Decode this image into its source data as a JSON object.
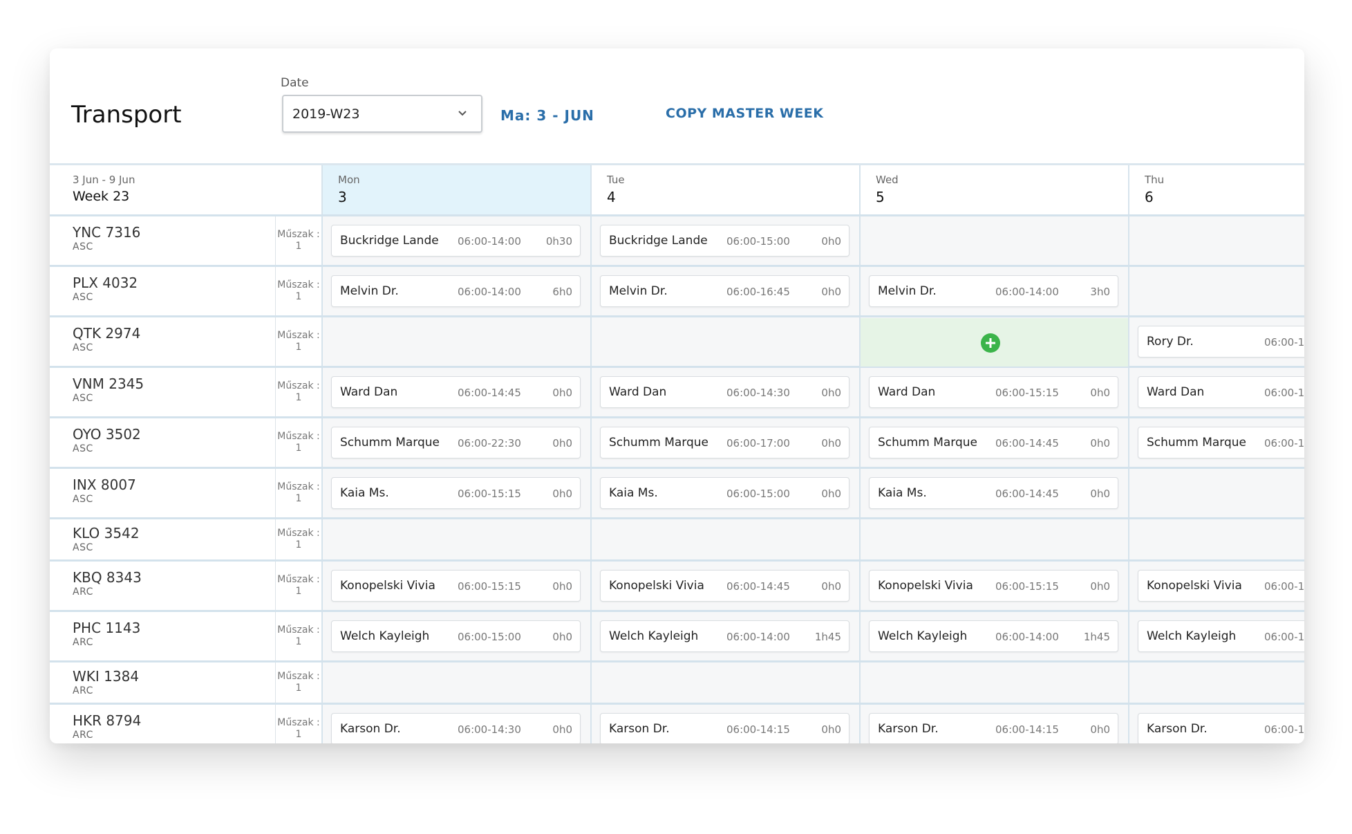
{
  "header": {
    "title": "Transport",
    "date_label": "Date",
    "date_value": "2019-W23",
    "day_link": "Ma: 3 - JUN",
    "action": "COPY MASTER WEEK"
  },
  "week": {
    "range": "3 Jun - 9 Jun",
    "label": "Week 23"
  },
  "days": [
    {
      "name": "Mon",
      "number": "3"
    },
    {
      "name": "Tue",
      "number": "4"
    },
    {
      "name": "Wed",
      "number": "5"
    },
    {
      "name": "Thu",
      "number": "6"
    }
  ],
  "rows": [
    {
      "vehicle": "YNC 7316",
      "group": "ASC",
      "shift_label": "Műszak :",
      "shift": "1",
      "cells": [
        {
          "driver": "Buckridge Lande",
          "time": "06:00-14:00",
          "extra": "0h30"
        },
        {
          "driver": "Buckridge Lande",
          "time": "06:00-15:00",
          "extra": "0h0"
        },
        null,
        null
      ]
    },
    {
      "vehicle": "PLX 4032",
      "group": "ASC",
      "shift_label": "Műszak :",
      "shift": "1",
      "cells": [
        {
          "driver": "Melvin Dr.",
          "time": "06:00-14:00",
          "extra": "6h0"
        },
        {
          "driver": "Melvin Dr.",
          "time": "06:00-16:45",
          "extra": "0h0"
        },
        {
          "driver": "Melvin Dr.",
          "time": "06:00-14:00",
          "extra": "3h0"
        },
        null
      ]
    },
    {
      "vehicle": "QTK 2974",
      "group": "ASC",
      "shift_label": "Műszak :",
      "shift": "1",
      "cells": [
        null,
        null,
        null,
        {
          "driver": "Rory Dr.",
          "time": "06:00-1"
        }
      ]
    },
    {
      "vehicle": "VNM 2345",
      "group": "ASC",
      "shift_label": "Műszak :",
      "shift": "1",
      "cells": [
        {
          "driver": "Ward Dan",
          "time": "06:00-14:45",
          "extra": "0h0"
        },
        {
          "driver": "Ward Dan",
          "time": "06:00-14:30",
          "extra": "0h0"
        },
        {
          "driver": "Ward Dan",
          "time": "06:00-15:15",
          "extra": "0h0"
        },
        {
          "driver": "Ward Dan",
          "time": "06:00-1"
        }
      ]
    },
    {
      "vehicle": "OYO 3502",
      "group": "ASC",
      "shift_label": "Műszak :",
      "shift": "1",
      "cells": [
        {
          "driver": "Schumm Marque",
          "time": "06:00-22:30",
          "extra": "0h0"
        },
        {
          "driver": "Schumm Marque",
          "time": "06:00-17:00",
          "extra": "0h0"
        },
        {
          "driver": "Schumm Marque",
          "time": "06:00-14:45",
          "extra": "0h0"
        },
        {
          "driver": "Schumm Marque",
          "time": "06:00-1"
        }
      ]
    },
    {
      "vehicle": "INX 8007",
      "group": "ASC",
      "shift_label": "Műszak :",
      "shift": "1",
      "cells": [
        {
          "driver": "Kaia Ms.",
          "time": "06:00-15:15",
          "extra": "0h0"
        },
        {
          "driver": "Kaia Ms.",
          "time": "06:00-15:00",
          "extra": "0h0"
        },
        {
          "driver": "Kaia Ms.",
          "time": "06:00-14:45",
          "extra": "0h0"
        },
        null
      ]
    },
    {
      "vehicle": "KLO 3542",
      "group": "ASC",
      "shift_label": "Műszak :",
      "shift": "1",
      "cells": [
        null,
        null,
        null,
        null
      ]
    },
    {
      "vehicle": "KBQ 8343",
      "group": "ARC",
      "shift_label": "Műszak :",
      "shift": "1",
      "cells": [
        {
          "driver": "Konopelski Vivia",
          "time": "06:00-15:15",
          "extra": "0h0"
        },
        {
          "driver": "Konopelski Vivia",
          "time": "06:00-14:45",
          "extra": "0h0"
        },
        {
          "driver": "Konopelski Vivia",
          "time": "06:00-15:15",
          "extra": "0h0"
        },
        {
          "driver": "Konopelski Vivia",
          "time": "06:00-1"
        }
      ]
    },
    {
      "vehicle": "PHC 1143",
      "group": "ARC",
      "shift_label": "Műszak :",
      "shift": "1",
      "cells": [
        {
          "driver": "Welch Kayleigh",
          "time": "06:00-15:00",
          "extra": "0h0"
        },
        {
          "driver": "Welch Kayleigh",
          "time": "06:00-14:00",
          "extra": "1h45"
        },
        {
          "driver": "Welch Kayleigh",
          "time": "06:00-14:00",
          "extra": "1h45"
        },
        {
          "driver": "Welch Kayleigh",
          "time": "06:00-1"
        }
      ]
    },
    {
      "vehicle": "WKI 1384",
      "group": "ARC",
      "shift_label": "Műszak :",
      "shift": "1",
      "cells": [
        null,
        null,
        null,
        null
      ]
    },
    {
      "vehicle": "HKR 8794",
      "group": "ARC",
      "shift_label": "Műszak :",
      "shift": "1",
      "cells": [
        {
          "driver": "Karson Dr.",
          "time": "06:00-14:30",
          "extra": "0h0"
        },
        {
          "driver": "Karson Dr.",
          "time": "06:00-14:15",
          "extra": "0h0"
        },
        {
          "driver": "Karson Dr.",
          "time": "06:00-14:15",
          "extra": "0h0"
        },
        {
          "driver": "Karson Dr.",
          "time": "06:00-1"
        }
      ]
    }
  ]
}
